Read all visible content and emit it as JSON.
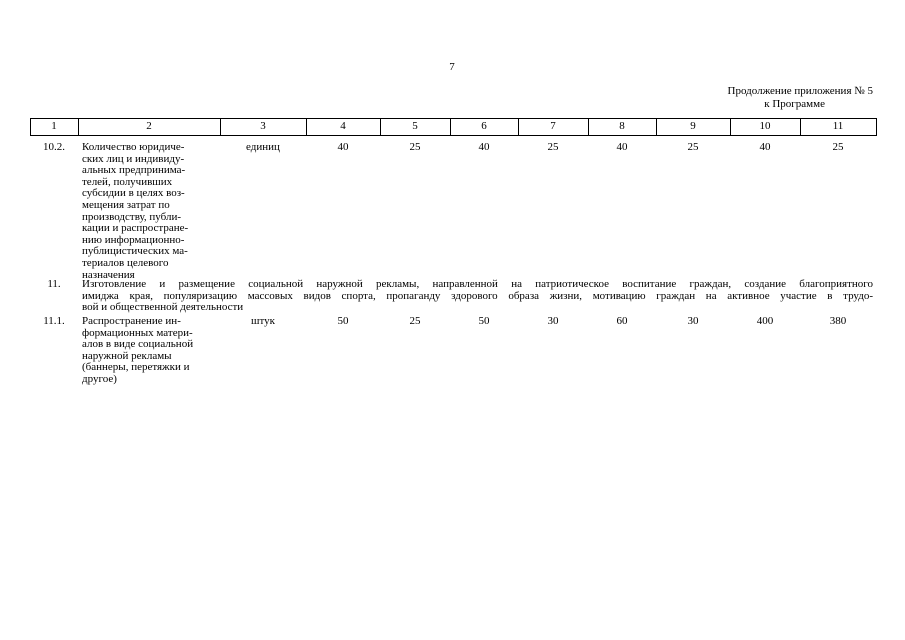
{
  "page_number": "7",
  "header": {
    "line1": "Продолжение приложения № 5",
    "line2": "к Программе"
  },
  "table": {
    "header": [
      "1",
      "2",
      "3",
      "4",
      "5",
      "6",
      "7",
      "8",
      "9",
      "10",
      "11"
    ],
    "rows": [
      {
        "number": "10.2.",
        "name_lines": [
          "Количество юридиче-",
          "ских лиц и индивиду-",
          "альных предпринима-",
          "телей, получивших",
          "субсидии в целях воз-",
          "мещения затрат по",
          "производству, публи-",
          "кации и распростране-",
          "нию информационно-",
          "публицистических ма-",
          "териалов целевого",
          "назначения"
        ],
        "unit": "единиц",
        "values": [
          40,
          25,
          40,
          25,
          40,
          25,
          40,
          25
        ]
      },
      {
        "number": "11.",
        "section_lines": [
          "Изготовление и размещение социальной наружной рекламы, направленной на патриотическое воспитание граждан, создание благоприятного",
          "имиджа края, популяризацию массовых видов спорта, пропаганду здорового образа жизни, мотивацию граждан на активное участие в трудо-",
          "вой и общественной деятельности"
        ]
      },
      {
        "number": "11.1.",
        "name_lines": [
          "Распространение ин-",
          "формационных матери-",
          "алов в виде социальной",
          "наружной рекламы",
          "(баннеры, перетяжки и",
          "другое)"
        ],
        "unit": "штук",
        "values": [
          50,
          25,
          50,
          30,
          60,
          30,
          400,
          380
        ]
      }
    ]
  }
}
